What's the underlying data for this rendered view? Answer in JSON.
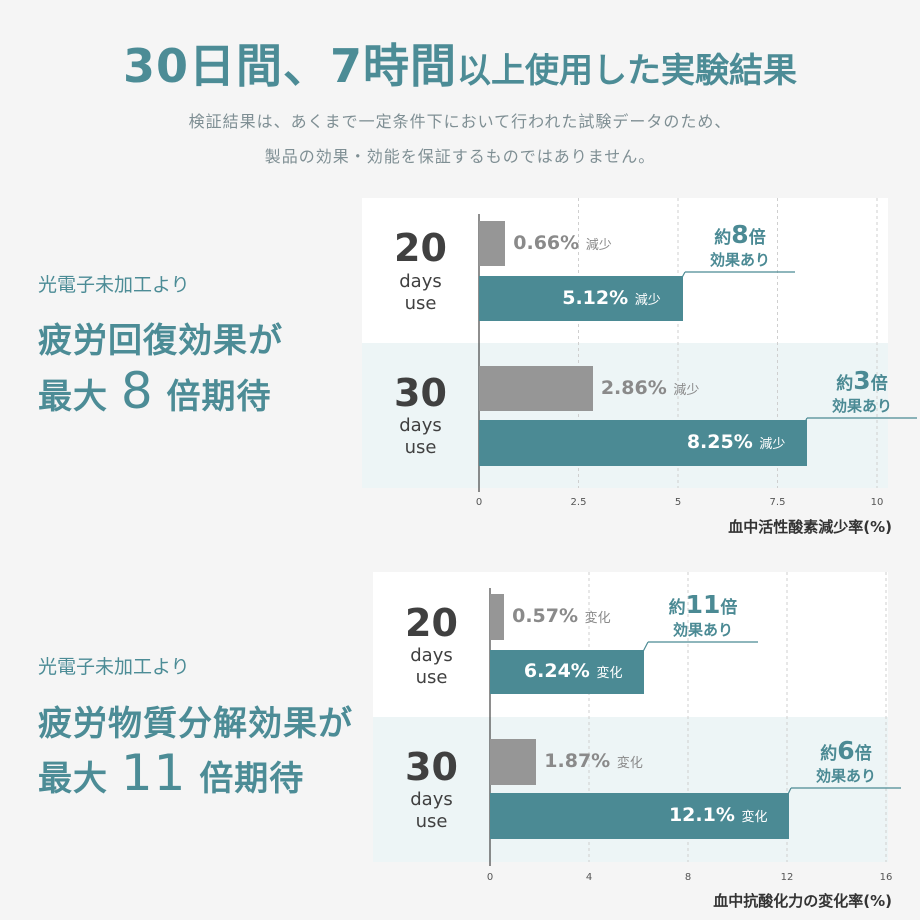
{
  "title": {
    "part1": "30日間、7時間",
    "part2": "以上使用した実験結果"
  },
  "subtitle": {
    "line1": "検証結果は、あくまで一定条件下において行われた試験データのため、",
    "line2": "製品の効果・効能を保証するものではありません。"
  },
  "sections": [
    {
      "lead": "光電子未加工より",
      "heading_line1": "疲労回復効果が",
      "heading_pre": "最大",
      "heading_num": "8",
      "heading_post": "倍期待"
    },
    {
      "lead": "光電子未加工より",
      "heading_line1": "疲労物質分解効果が",
      "heading_pre": "最大",
      "heading_num": "11",
      "heading_post": "倍期待"
    }
  ],
  "labels": {
    "days": "days",
    "use": "use"
  },
  "colors": {
    "accent": "#4b8a94",
    "gray": "#969696",
    "band": "#edf5f6"
  },
  "chart_data": [
    {
      "type": "bar",
      "orientation": "horizontal",
      "categories": [
        "20",
        "30"
      ],
      "series": [
        {
          "values": [
            0.66,
            2.86
          ],
          "value_labels": [
            "0.66%",
            "2.86%"
          ],
          "unit": "減少"
        },
        {
          "values": [
            5.12,
            8.25
          ],
          "value_labels": [
            "5.12%",
            "8.25%"
          ],
          "unit": "減少"
        }
      ],
      "callouts": [
        {
          "pre": "約",
          "num": "8",
          "post": "倍",
          "line2": "効果あり"
        },
        {
          "pre": "約",
          "num": "3",
          "post": "倍",
          "line2": "効果あり"
        }
      ],
      "xlim": [
        0,
        10
      ],
      "xticks": [
        0,
        2.5,
        5,
        7.5,
        10
      ],
      "xtick_labels": [
        "0",
        "2.5",
        "5",
        "7.5",
        "10"
      ],
      "xlabel": "血中活性酸素減少率(%)",
      "grid": true
    },
    {
      "type": "bar",
      "orientation": "horizontal",
      "categories": [
        "20",
        "30"
      ],
      "series": [
        {
          "values": [
            0.57,
            1.87
          ],
          "value_labels": [
            "0.57%",
            "1.87%"
          ],
          "unit": "変化"
        },
        {
          "values": [
            6.24,
            12.1
          ],
          "value_labels": [
            "6.24%",
            "12.1%"
          ],
          "unit": "変化"
        }
      ],
      "callouts": [
        {
          "pre": "約",
          "num": "11",
          "post": "倍",
          "line2": "効果あり"
        },
        {
          "pre": "約",
          "num": "6",
          "post": "倍",
          "line2": "効果あり"
        }
      ],
      "xlim": [
        0,
        16
      ],
      "xticks": [
        0,
        4,
        8,
        12,
        16
      ],
      "xtick_labels": [
        "0",
        "4",
        "8",
        "12",
        "16"
      ],
      "xlabel": "血中抗酸化力の変化率(%)",
      "grid": true
    }
  ]
}
